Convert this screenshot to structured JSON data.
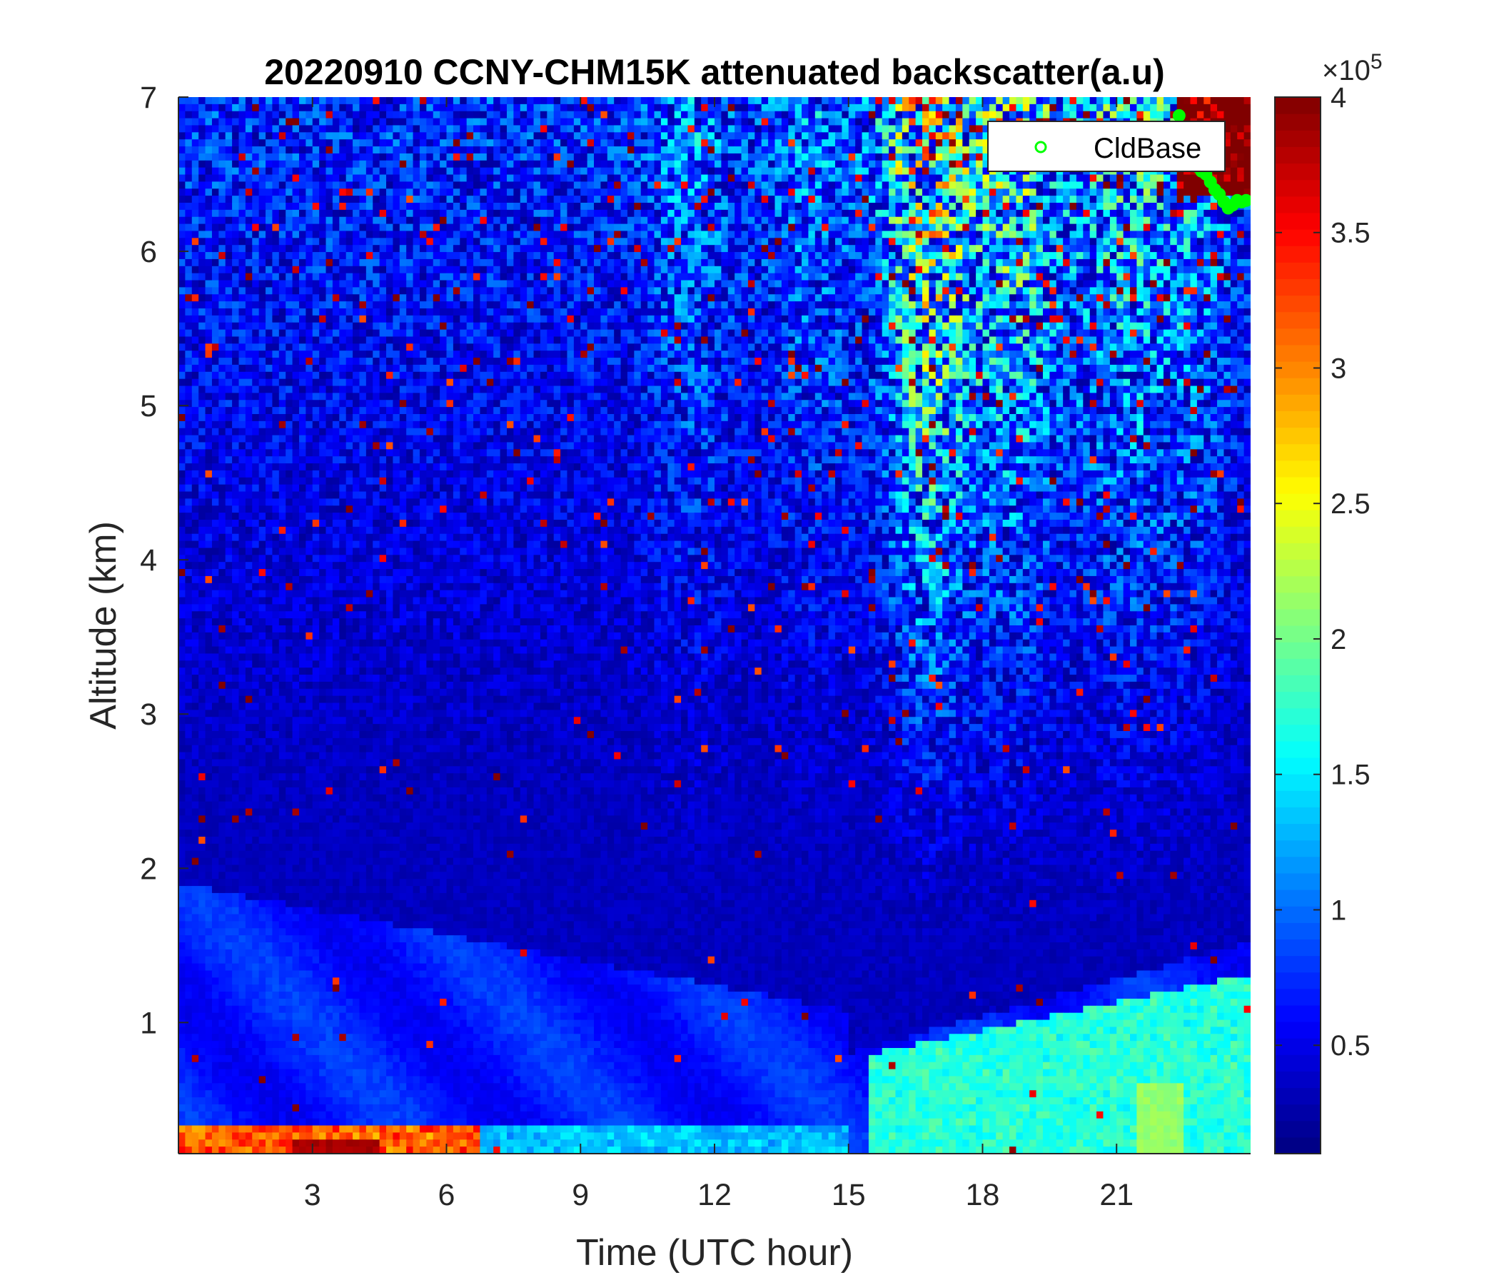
{
  "chart_data": {
    "type": "heatmap",
    "title": "20220910 CCNY-CHM15K attenuated backscatter(a.u)",
    "xlabel": "Time (UTC hour)",
    "ylabel": "Altitude (km)",
    "x_ticks": [
      3,
      6,
      9,
      12,
      15,
      18,
      21
    ],
    "y_ticks": [
      1,
      2,
      3,
      4,
      5,
      6,
      7
    ],
    "xlim": [
      0,
      24
    ],
    "ylim": [
      0.15,
      7
    ],
    "colormap": "jet",
    "colorbar": {
      "ticks": [
        "0.5",
        "1",
        "1.5",
        "2",
        "2.5",
        "3",
        "3.5",
        "4"
      ],
      "tick_values": [
        0.5,
        1,
        1.5,
        2,
        2.5,
        3,
        3.5,
        4
      ],
      "range": [
        0.1,
        4
      ],
      "exponent_label": "×10",
      "exponent_power": "5"
    },
    "legend": {
      "position": "top-right",
      "entries": [
        "CldBase"
      ]
    },
    "series": [
      {
        "name": "CldBase",
        "marker": "circle",
        "color": "#00ff00",
        "x": [
          22.4,
          22.5,
          22.6,
          22.7,
          22.8,
          22.9,
          23.0,
          23.1,
          23.2,
          23.3,
          23.4,
          23.5,
          23.6,
          23.7,
          23.8,
          23.9
        ],
        "y": [
          6.88,
          6.8,
          6.7,
          6.62,
          6.55,
          6.52,
          6.5,
          6.45,
          6.4,
          6.37,
          6.32,
          6.28,
          6.3,
          6.33,
          6.32,
          6.33
        ]
      }
    ],
    "features": [
      {
        "description": "surface aerosol layer",
        "x_range": [
          0,
          7
        ],
        "y_range": [
          0.15,
          0.4
        ],
        "value_range": [
          2.5,
          4
        ]
      },
      {
        "description": "boundary layer",
        "x_range": [
          15,
          24
        ],
        "y_range": [
          0.15,
          1.4
        ],
        "value_range": [
          1.2,
          2.2
        ]
      },
      {
        "description": "cloud",
        "x_range": [
          22.4,
          24
        ],
        "y_range": [
          6.3,
          7
        ],
        "value": 4
      }
    ]
  },
  "icons": {
    "legend_marker": "circle-marker-icon"
  }
}
